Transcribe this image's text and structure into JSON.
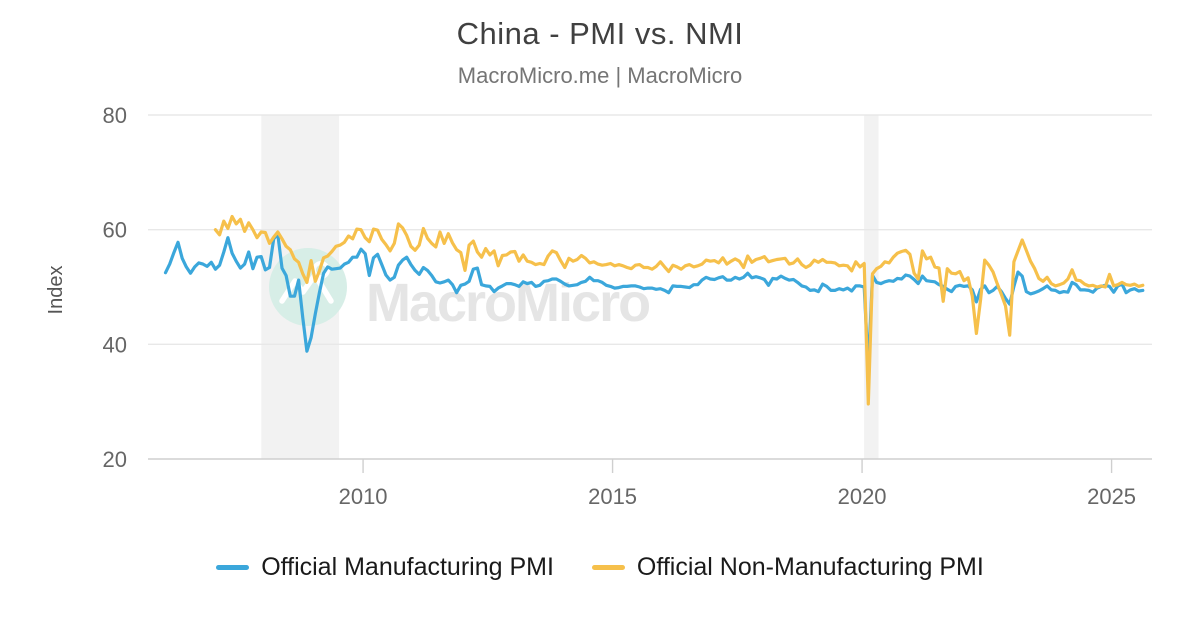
{
  "page": {
    "title": "China - PMI vs. NMI",
    "subtitle": "MacroMicro.me | MacroMicro"
  },
  "watermark": {
    "text": "MacroMicro",
    "circle_color": "#d7eee7",
    "text_color": "#e5e5e5"
  },
  "chart_data": {
    "type": "line",
    "title": "China - PMI vs. NMI",
    "xlabel": "",
    "ylabel": "Index",
    "ylim": [
      20,
      80
    ],
    "yticks": [
      20,
      40,
      60,
      80
    ],
    "xlim": [
      2005.69,
      2025.81
    ],
    "xticks": [
      2010,
      2015,
      2020,
      2025
    ],
    "grid": true,
    "legend_position": "bottom",
    "band_color": "#f2f2f2",
    "axis_color": "#cfcfcf",
    "grid_color": "#e8e8e8",
    "tick_label_color": "#666666",
    "recession_bands": [
      [
        2007.96,
        2009.52
      ],
      [
        2020.04,
        2020.33
      ]
    ],
    "series": [
      {
        "name": "Official Manufacturing PMI",
        "color": "#3BA7DB",
        "start_year": 2006,
        "start_month": 1,
        "values": [
          52.5,
          54.0,
          56.0,
          57.8,
          55.0,
          53.5,
          52.4,
          53.5,
          54.2,
          54.0,
          53.6,
          54.3,
          53.1,
          53.8,
          56.1,
          58.6,
          55.9,
          54.5,
          53.3,
          54.0,
          56.1,
          53.2,
          55.2,
          55.3,
          53.0,
          53.4,
          58.4,
          59.2,
          53.3,
          52.0,
          48.4,
          48.4,
          51.2,
          44.6,
          38.8,
          41.2,
          45.3,
          49.0,
          52.4,
          53.5,
          53.1,
          53.2,
          53.3,
          54.0,
          54.3,
          55.2,
          55.2,
          56.6,
          55.8,
          52.0,
          55.1,
          55.7,
          53.9,
          52.1,
          51.2,
          51.7,
          53.8,
          54.7,
          55.2,
          53.9,
          52.9,
          52.2,
          53.4,
          52.9,
          52.0,
          50.9,
          50.7,
          50.9,
          51.2,
          50.4,
          49.0,
          50.3,
          50.5,
          51.0,
          53.1,
          53.3,
          50.4,
          50.2,
          50.1,
          49.2,
          49.8,
          50.2,
          50.6,
          50.6,
          50.4,
          50.1,
          50.9,
          50.6,
          50.8,
          50.1,
          50.3,
          51.0,
          51.1,
          51.4,
          51.4,
          51.0,
          50.5,
          50.2,
          50.3,
          50.4,
          50.8,
          51.0,
          51.7,
          51.1,
          51.1,
          50.8,
          50.3,
          50.1,
          49.8,
          49.9,
          50.1,
          50.1,
          50.2,
          50.2,
          50.0,
          49.7,
          49.8,
          49.8,
          49.6,
          49.7,
          49.4,
          49.0,
          50.2,
          50.1,
          50.1,
          50.0,
          49.9,
          50.4,
          50.4,
          51.2,
          51.7,
          51.4,
          51.3,
          51.6,
          51.8,
          51.2,
          51.2,
          51.7,
          51.4,
          51.7,
          52.4,
          51.6,
          51.8,
          51.6,
          51.3,
          50.3,
          51.5,
          51.4,
          51.9,
          51.5,
          51.2,
          51.3,
          50.8,
          50.2,
          50.0,
          49.4,
          49.5,
          49.2,
          50.5,
          50.1,
          49.4,
          49.4,
          49.7,
          49.5,
          49.8,
          49.3,
          50.2,
          50.2,
          50.0,
          35.7,
          52.0,
          50.8,
          50.6,
          50.9,
          51.1,
          51.0,
          51.5,
          51.4,
          52.1,
          51.9,
          51.3,
          50.6,
          51.9,
          51.1,
          51.0,
          50.9,
          50.4,
          50.1,
          49.6,
          49.2,
          50.1,
          50.3,
          50.1,
          50.2,
          49.5,
          47.4,
          49.6,
          50.2,
          49.0,
          49.4,
          50.1,
          49.2,
          48.0,
          47.0,
          50.1,
          52.6,
          51.9,
          49.2,
          48.8,
          49.0,
          49.3,
          49.7,
          50.2,
          49.5,
          49.4,
          49.0,
          49.2,
          49.1,
          50.8,
          50.4,
          49.5,
          49.5,
          49.4,
          49.1,
          49.8,
          50.1,
          50.3,
          50.1,
          49.1,
          50.2,
          50.5,
          49.0,
          49.5,
          49.7,
          49.3,
          49.4
        ]
      },
      {
        "name": "Official Non-Manufacturing PMI",
        "color": "#F6C04B",
        "start_year": 2007,
        "start_month": 1,
        "values": [
          60.0,
          59.1,
          61.5,
          60.2,
          62.3,
          61.0,
          61.8,
          59.7,
          61.2,
          60.0,
          58.6,
          59.6,
          59.5,
          57.6,
          58.7,
          59.6,
          58.4,
          57.1,
          56.5,
          54.9,
          54.3,
          52.3,
          50.8,
          54.6,
          51.0,
          52.8,
          55.1,
          55.4,
          56.2,
          57.1,
          57.3,
          57.8,
          58.9,
          58.4,
          60.1,
          60.0,
          58.6,
          57.9,
          60.1,
          59.9,
          58.3,
          57.4,
          56.3,
          57.6,
          61.0,
          60.3,
          59.0,
          57.1,
          56.4,
          57.3,
          60.2,
          58.5,
          57.6,
          57.0,
          59.6,
          57.6,
          59.3,
          57.7,
          56.5,
          56.0,
          52.9,
          57.3,
          58.0,
          56.1,
          55.2,
          56.7,
          55.6,
          56.3,
          53.7,
          55.5,
          55.6,
          56.1,
          56.2,
          54.5,
          55.6,
          54.5,
          54.3,
          53.9,
          54.1,
          53.9,
          55.4,
          56.3,
          56.0,
          54.6,
          53.4,
          55.0,
          54.5,
          54.8,
          55.5,
          55.0,
          54.2,
          54.4,
          54.0,
          53.8,
          53.9,
          54.1,
          53.7,
          53.9,
          53.7,
          53.4,
          53.2,
          53.8,
          53.9,
          53.4,
          53.4,
          53.1,
          53.6,
          54.4,
          53.5,
          52.7,
          53.8,
          53.5,
          53.1,
          53.7,
          53.9,
          53.5,
          53.7,
          54.0,
          54.7,
          54.5,
          54.6,
          54.2,
          55.1,
          54.0,
          54.5,
          54.9,
          54.5,
          53.4,
          55.4,
          54.3,
          54.8,
          55.0,
          55.3,
          54.4,
          54.6,
          54.8,
          54.9,
          55.0,
          54.0,
          54.2,
          54.9,
          53.9,
          53.4,
          53.8,
          54.7,
          54.3,
          54.8,
          54.3,
          54.3,
          54.2,
          53.7,
          53.8,
          53.7,
          52.8,
          54.4,
          53.5,
          54.1,
          29.6,
          52.3,
          53.2,
          53.6,
          54.4,
          54.2,
          55.2,
          55.9,
          56.2,
          56.4,
          55.7,
          52.4,
          51.4,
          56.3,
          54.9,
          55.2,
          53.5,
          53.3,
          47.5,
          53.2,
          52.4,
          52.3,
          52.7,
          51.1,
          51.6,
          48.4,
          41.9,
          47.8,
          54.7,
          53.8,
          52.6,
          50.6,
          48.7,
          46.7,
          41.6,
          54.4,
          56.3,
          58.2,
          56.4,
          54.5,
          53.2,
          51.5,
          51.0,
          51.7,
          50.6,
          50.2,
          50.4,
          50.7,
          51.4,
          53.0,
          51.2,
          51.1,
          50.5,
          50.2,
          50.3,
          50.0,
          50.2,
          50.0,
          52.2,
          50.2,
          50.4,
          50.8,
          50.4,
          50.3,
          50.5,
          50.1,
          50.3
        ]
      }
    ]
  }
}
